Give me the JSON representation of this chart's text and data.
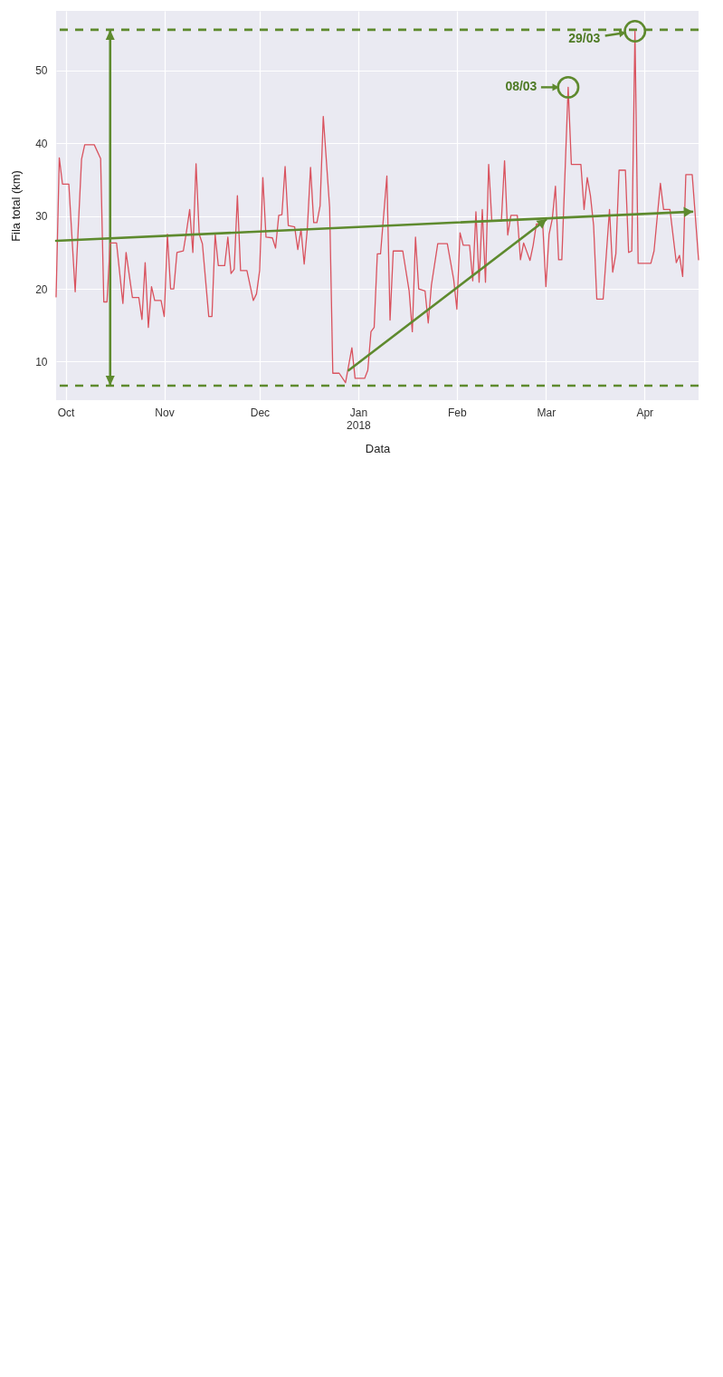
{
  "chart_data": {
    "type": "line",
    "xlabel": "Data",
    "ylabel": "Fila total (km)",
    "xlim": [
      "2017-09-28",
      "2018-04-18"
    ],
    "ylim": [
      4.7,
      58.2
    ],
    "xticks": [
      {
        "value": "2017-10-01",
        "label": "Oct"
      },
      {
        "value": "2017-11-01",
        "label": "Nov"
      },
      {
        "value": "2017-12-01",
        "label": "Dec"
      },
      {
        "value": "2018-01-01",
        "label": "Jan\n2018"
      },
      {
        "value": "2018-02-01",
        "label": "Feb"
      },
      {
        "value": "2018-03-01",
        "label": "Mar"
      },
      {
        "value": "2018-04-01",
        "label": "Apr"
      }
    ],
    "yticks": [
      10,
      20,
      30,
      40,
      50
    ],
    "grid": true,
    "marker": "none",
    "line_style": "solid",
    "series": [
      {
        "color": "#d9525e",
        "x": [
          "2017-09-28",
          "2017-09-29",
          "2017-09-30",
          "2017-10-02",
          "2017-10-04",
          "2017-10-06",
          "2017-10-07",
          "2017-10-10",
          "2017-10-12",
          "2017-10-13",
          "2017-10-14",
          "2017-10-15",
          "2017-10-17",
          "2017-10-19",
          "2017-10-20",
          "2017-10-22",
          "2017-10-24",
          "2017-10-25",
          "2017-10-26",
          "2017-10-27",
          "2017-10-28",
          "2017-10-29",
          "2017-10-31",
          "2017-11-01",
          "2017-11-02",
          "2017-11-03",
          "2017-11-04",
          "2017-11-05",
          "2017-11-07",
          "2017-11-08",
          "2017-11-09",
          "2017-11-10",
          "2017-11-11",
          "2017-11-12",
          "2017-11-13",
          "2017-11-15",
          "2017-11-16",
          "2017-11-17",
          "2017-11-18",
          "2017-11-20",
          "2017-11-21",
          "2017-11-22",
          "2017-11-23",
          "2017-11-24",
          "2017-11-25",
          "2017-11-27",
          "2017-11-29",
          "2017-11-30",
          "2017-12-01",
          "2017-12-02",
          "2017-12-03",
          "2017-12-05",
          "2017-12-06",
          "2017-12-07",
          "2017-12-08",
          "2017-12-09",
          "2017-12-10",
          "2017-12-12",
          "2017-12-13",
          "2017-12-14",
          "2017-12-15",
          "2017-12-16",
          "2017-12-17",
          "2017-12-18",
          "2017-12-19",
          "2017-12-20",
          "2017-12-21",
          "2017-12-23",
          "2017-12-24",
          "2017-12-26",
          "2017-12-28",
          "2017-12-30",
          "2017-12-31",
          "2018-01-03",
          "2018-01-04",
          "2018-01-05",
          "2018-01-06",
          "2018-01-07",
          "2018-01-08",
          "2018-01-10",
          "2018-01-11",
          "2018-01-12",
          "2018-01-15",
          "2018-01-17",
          "2018-01-18",
          "2018-01-19",
          "2018-01-20",
          "2018-01-22",
          "2018-01-23",
          "2018-01-24",
          "2018-01-26",
          "2018-01-29",
          "2018-01-31",
          "2018-02-01",
          "2018-02-02",
          "2018-02-03",
          "2018-02-05",
          "2018-02-06",
          "2018-02-07",
          "2018-02-08",
          "2018-02-09",
          "2018-02-10",
          "2018-02-11",
          "2018-02-12",
          "2018-02-15",
          "2018-02-16",
          "2018-02-17",
          "2018-02-18",
          "2018-02-20",
          "2018-02-21",
          "2018-02-22",
          "2018-02-24",
          "2018-02-25",
          "2018-02-26",
          "2018-02-28",
          "2018-03-01",
          "2018-03-02",
          "2018-03-03",
          "2018-03-04",
          "2018-03-05",
          "2018-03-06",
          "2018-03-08",
          "2018-03-09",
          "2018-03-12",
          "2018-03-13",
          "2018-03-14",
          "2018-03-15",
          "2018-03-16",
          "2018-03-17",
          "2018-03-19",
          "2018-03-21",
          "2018-03-22",
          "2018-03-23",
          "2018-03-24",
          "2018-03-26",
          "2018-03-27",
          "2018-03-28",
          "2018-03-29",
          "2018-03-30",
          "2018-04-03",
          "2018-04-04",
          "2018-04-06",
          "2018-04-07",
          "2018-04-09",
          "2018-04-11",
          "2018-04-12",
          "2018-04-13",
          "2018-04-14",
          "2018-04-16",
          "2018-04-18"
        ],
        "values": [
          18.9,
          38.0,
          34.4,
          34.4,
          19.6,
          37.8,
          39.8,
          39.8,
          37.9,
          18.2,
          18.2,
          26.3,
          26.3,
          18.0,
          25.0,
          18.8,
          18.8,
          15.8,
          23.6,
          14.7,
          20.3,
          18.4,
          18.4,
          16.2,
          27.5,
          20.0,
          20.0,
          25.0,
          25.2,
          27.9,
          30.9,
          25.0,
          37.2,
          27.5,
          26.2,
          16.2,
          16.2,
          27.5,
          23.2,
          23.2,
          27.1,
          22.1,
          22.7,
          32.8,
          22.5,
          22.5,
          18.4,
          19.3,
          22.5,
          35.3,
          27.1,
          27.0,
          25.6,
          30.1,
          30.2,
          36.8,
          28.7,
          28.5,
          25.4,
          28.2,
          23.4,
          28.3,
          36.7,
          29.1,
          29.1,
          31.4,
          43.7,
          31.2,
          8.4,
          8.4,
          7.1,
          11.9,
          7.7,
          7.7,
          8.8,
          14.1,
          14.7,
          24.8,
          24.8,
          35.5,
          15.7,
          25.2,
          25.2,
          19.7,
          14.1,
          27.1,
          20.0,
          19.7,
          15.3,
          20.5,
          26.2,
          26.2,
          21.3,
          17.2,
          27.7,
          26.0,
          26.0,
          21.1,
          30.6,
          20.9,
          30.9,
          20.9,
          37.1,
          29.3,
          29.3,
          37.6,
          27.4,
          30.1,
          30.1,
          24.0,
          26.3,
          23.9,
          26.0,
          28.9,
          28.9,
          20.3,
          27.5,
          29.6,
          34.1,
          24.0,
          24.0,
          47.7,
          37.1,
          37.1,
          30.9,
          35.3,
          32.8,
          28.7,
          18.6,
          18.6,
          30.9,
          22.3,
          24.8,
          36.3,
          36.3,
          25.0,
          25.2,
          55.4,
          23.5,
          23.5,
          25.2,
          34.5,
          30.9,
          30.9,
          23.6,
          24.6,
          21.7,
          35.7,
          35.7,
          24.0
        ]
      },
      {
        "type": "line",
        "color": "#5e8a2e",
        "x": [
          "2017-09-28",
          "2018-04-16"
        ],
        "values": [
          26.6,
          30.6
        ]
      },
      {
        "type": "line",
        "color": "#5e8a2e",
        "x": [
          "2017-12-29",
          "2018-03-01"
        ],
        "values": [
          8.8,
          29.5
        ]
      }
    ],
    "ref_lines": [
      {
        "axis": "y",
        "value": 55.6,
        "color": "#5e8a2e",
        "line_style": "dashed"
      },
      {
        "axis": "y",
        "value": 6.7,
        "color": "#5e8a2e",
        "line_style": "dashed"
      },
      {
        "axis": "x",
        "value": "2017-10-15",
        "color": "#5e8a2e",
        "line_style": "solid"
      }
    ],
    "annotations": [
      {
        "text": "29/03",
        "x": "2018-03-29",
        "y": 55.4
      },
      {
        "text": "08/03",
        "x": "2018-03-08",
        "y": 47.7
      }
    ]
  }
}
